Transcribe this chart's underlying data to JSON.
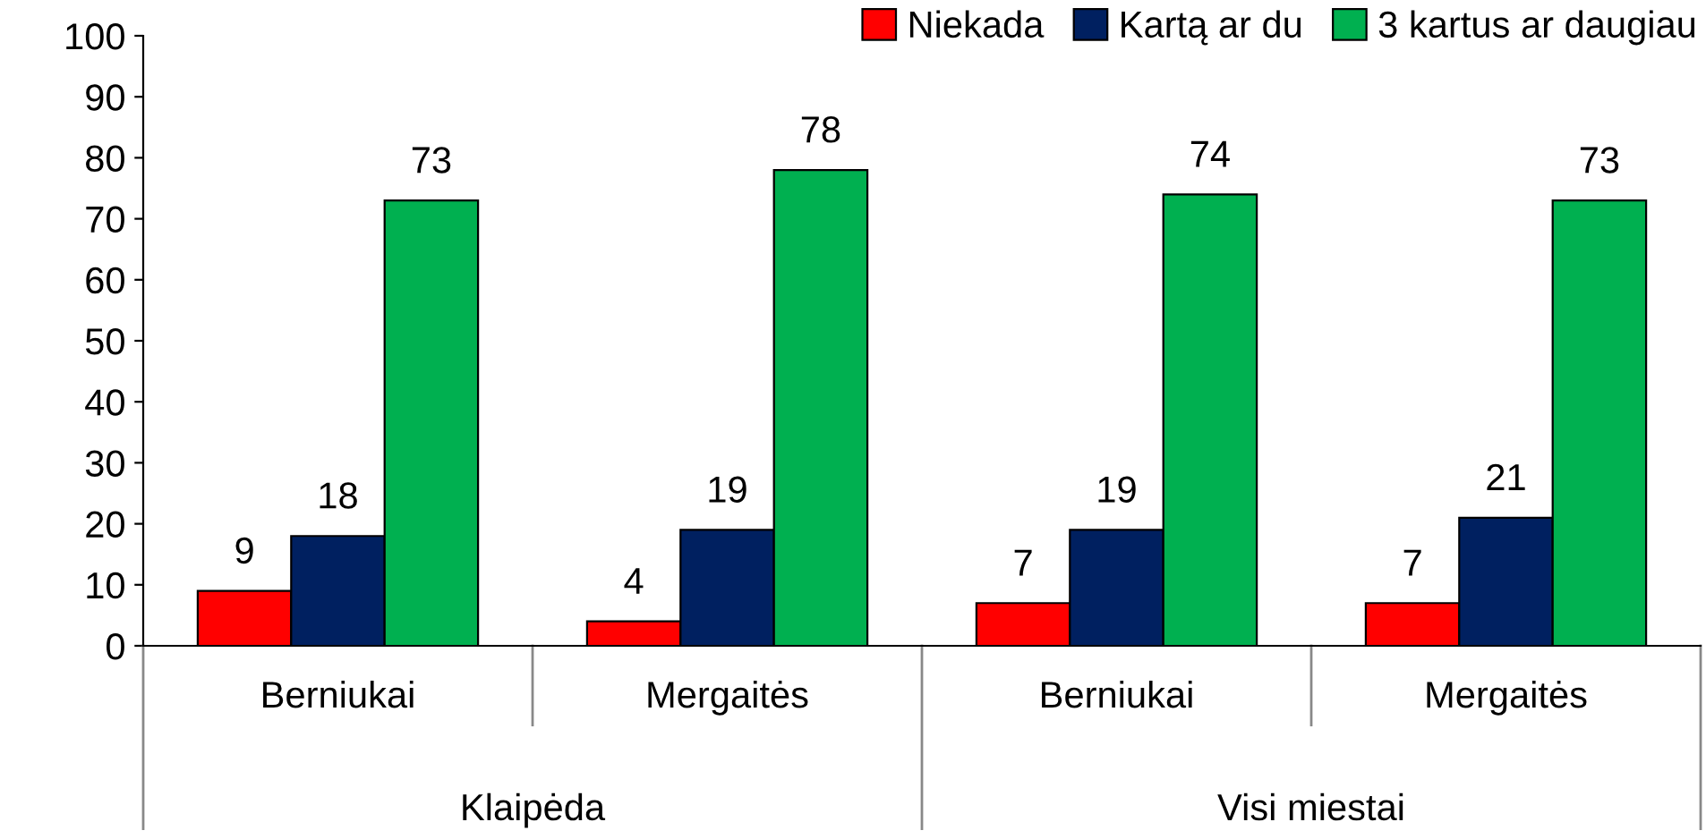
{
  "chart_data": {
    "type": "bar",
    "categories": [
      "Berniukai",
      "Mergaitės",
      "Berniukai",
      "Mergaitės"
    ],
    "series": [
      {
        "name": "Niekada",
        "color": "#ff0000",
        "values": [
          9,
          4,
          7,
          7
        ]
      },
      {
        "name": "Kartą ar du",
        "color": "#002060",
        "values": [
          18,
          19,
          19,
          21
        ]
      },
      {
        "name": "3 kartus ar daugiau",
        "color": "#00b050",
        "values": [
          73,
          78,
          74,
          73
        ]
      }
    ],
    "annotations": [
      "Klaipėda",
      "Visi miestai"
    ],
    "ylim": [
      0,
      100
    ],
    "yticks": [
      0,
      10,
      20,
      30,
      40,
      50,
      60,
      70,
      80,
      90,
      100
    ],
    "grid": false,
    "legend": "top right",
    "data_labels": true
  }
}
